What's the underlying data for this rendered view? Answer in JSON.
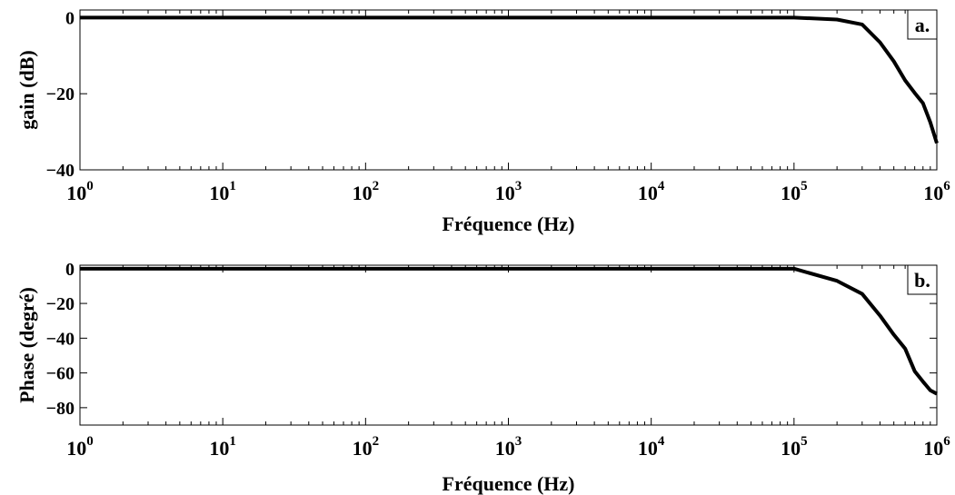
{
  "chart_data": [
    {
      "type": "line",
      "panel_label": "a.",
      "xlabel": "Fréquence (Hz)",
      "ylabel": "gain (dB)",
      "x_scale": "log",
      "xlim": [
        1,
        1000000
      ],
      "ylim": [
        -40,
        2
      ],
      "x_ticks": [
        {
          "value": 1,
          "base": "10",
          "exp": "0"
        },
        {
          "value": 10,
          "base": "10",
          "exp": "1"
        },
        {
          "value": 100,
          "base": "10",
          "exp": "2"
        },
        {
          "value": 1000,
          "base": "10",
          "exp": "3"
        },
        {
          "value": 10000,
          "base": "10",
          "exp": "4"
        },
        {
          "value": 100000,
          "base": "10",
          "exp": "5"
        },
        {
          "value": 1000000,
          "base": "10",
          "exp": "6"
        }
      ],
      "y_ticks": [
        {
          "value": 0,
          "label": "0"
        },
        {
          "value": -20,
          "label": "−20"
        },
        {
          "value": -40,
          "label": "−40"
        }
      ],
      "grid": false,
      "line_color": "#000000",
      "series": [
        {
          "x": [
            1,
            100000,
            200000,
            300000,
            400000,
            500000,
            600000,
            700000,
            800000,
            900000,
            1000000
          ],
          "y": [
            0,
            0,
            -0.5,
            -1.8,
            -6.5,
            -11.5,
            -16.5,
            -19.8,
            -22.5,
            -27.5,
            -33
          ]
        }
      ]
    },
    {
      "type": "line",
      "panel_label": "b.",
      "xlabel": "Fréquence (Hz)",
      "ylabel": "Phase (degré)",
      "x_scale": "log",
      "xlim": [
        1,
        1000000
      ],
      "ylim": [
        -90,
        2
      ],
      "x_ticks": [
        {
          "value": 1,
          "base": "10",
          "exp": "0"
        },
        {
          "value": 10,
          "base": "10",
          "exp": "1"
        },
        {
          "value": 100,
          "base": "10",
          "exp": "2"
        },
        {
          "value": 1000,
          "base": "10",
          "exp": "3"
        },
        {
          "value": 10000,
          "base": "10",
          "exp": "4"
        },
        {
          "value": 100000,
          "base": "10",
          "exp": "5"
        },
        {
          "value": 1000000,
          "base": "10",
          "exp": "6"
        }
      ],
      "y_ticks": [
        {
          "value": 0,
          "label": "0"
        },
        {
          "value": -20,
          "label": "−20"
        },
        {
          "value": -40,
          "label": "−40"
        },
        {
          "value": -60,
          "label": "−60"
        },
        {
          "value": -80,
          "label": "−80"
        }
      ],
      "grid": false,
      "line_color": "#000000",
      "series": [
        {
          "x": [
            1,
            100000,
            200000,
            300000,
            400000,
            500000,
            600000,
            700000,
            800000,
            900000,
            1000000
          ],
          "y": [
            0,
            0,
            -7,
            -14.5,
            -27,
            -38,
            -46,
            -59,
            -65,
            -70,
            -72
          ]
        }
      ]
    }
  ]
}
